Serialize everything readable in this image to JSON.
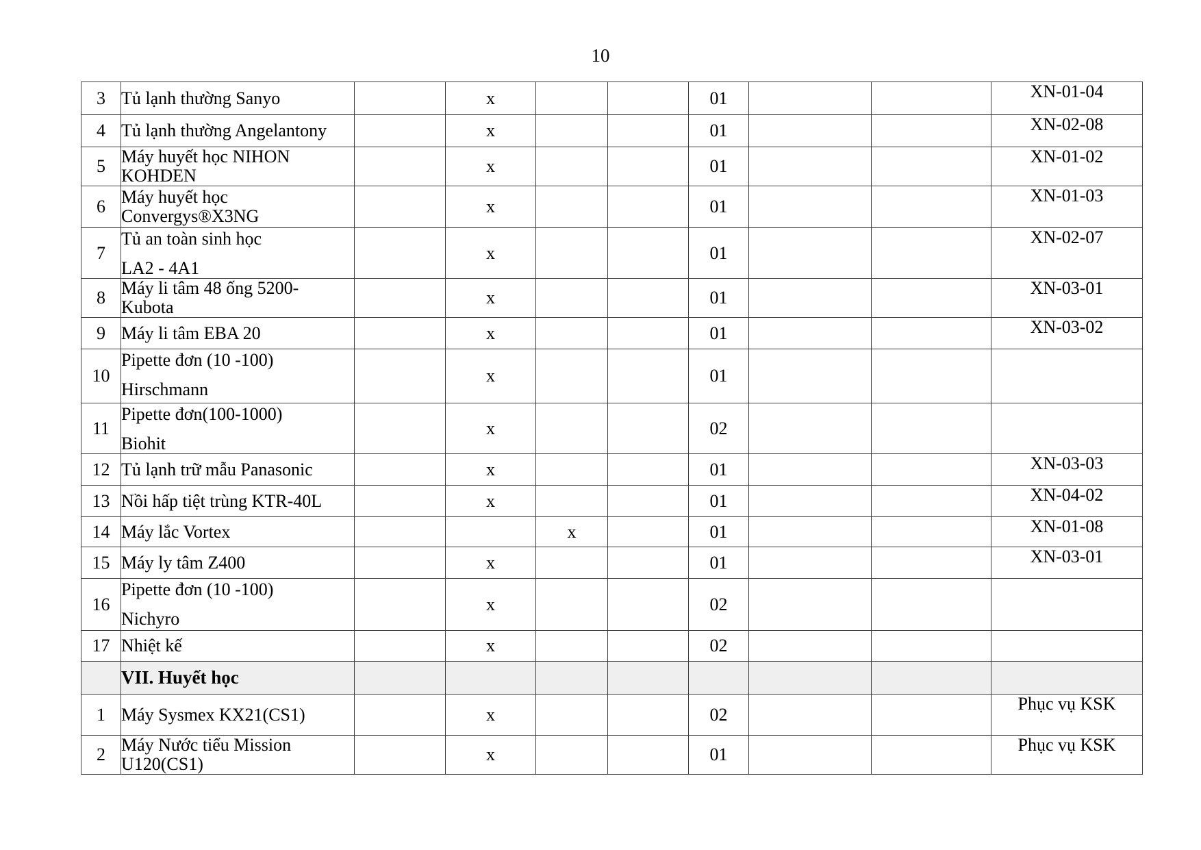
{
  "page": {
    "number": "10",
    "background": "#ffffff"
  },
  "colors": {
    "border": "#3d3d3d",
    "section_row_bg": "#efefef",
    "text": "#000000"
  },
  "table": {
    "mark_char": "x",
    "rows": [
      {
        "num": "3",
        "name": [
          "Tủ lạnh thường Sanyo"
        ],
        "gap": false,
        "mark": "main",
        "qty": "01",
        "code": "XN-01-04"
      },
      {
        "num": "4",
        "name": [
          "Tủ lạnh thường Angelantony"
        ],
        "gap": false,
        "mark": "main",
        "qty": "01",
        "code": "XN-02-08"
      },
      {
        "num": "5",
        "name": [
          "Máy huyết học NIHON",
          "KOHDEN"
        ],
        "gap": false,
        "mark": "main",
        "qty": "01",
        "code": "XN-01-02"
      },
      {
        "num": "6",
        "name": [
          "Máy huyết học",
          "Convergys®X3NG"
        ],
        "gap": false,
        "mark": "main",
        "qty": "01",
        "code": "XN-01-03"
      },
      {
        "num": "7",
        "name": [
          "Tủ an toàn sinh học",
          "LA2 - 4A1"
        ],
        "gap": true,
        "mark": "main",
        "qty": "01",
        "code": "XN-02-07"
      },
      {
        "num": "8",
        "name": [
          "Máy li tâm 48 ống 5200- Kubota"
        ],
        "gap": false,
        "mark": "main",
        "qty": "01",
        "code": "XN-03-01"
      },
      {
        "num": "9",
        "name": [
          "Máy li tâm EBA 20"
        ],
        "gap": false,
        "mark": "main",
        "qty": "01",
        "code": "XN-03-02"
      },
      {
        "num": "10",
        "name": [
          "Pipette đơn (10 -100)",
          "Hirschmann"
        ],
        "gap": true,
        "mark": "main",
        "qty": "01",
        "code": ""
      },
      {
        "num": "11",
        "name": [
          "Pipette đơn(100-1000)",
          "Biohit"
        ],
        "gap": true,
        "mark": "main",
        "qty": "02",
        "code": ""
      },
      {
        "num": "12",
        "name": [
          "Tủ lạnh trữ mẫu Panasonic"
        ],
        "gap": false,
        "mark": "main",
        "qty": "01",
        "code": "XN-03-03"
      },
      {
        "num": "13",
        "name": [
          "Nồi hấp tiệt trùng KTR-40L"
        ],
        "gap": false,
        "mark": "main",
        "qty": "01",
        "code": "XN-04-02"
      },
      {
        "num": "14",
        "name": [
          "Máy lắc Vortex"
        ],
        "gap": false,
        "mark": "alt",
        "qty": "01",
        "code": "XN-01-08"
      },
      {
        "num": "15",
        "name": [
          "Máy ly tâm Z400"
        ],
        "gap": false,
        "mark": "main",
        "qty": "01",
        "code": "XN-03-01"
      },
      {
        "num": "16",
        "name": [
          "Pipette đơn (10 -100)",
          "Nichyro"
        ],
        "gap": true,
        "mark": "main",
        "qty": "02",
        "code": ""
      },
      {
        "num": "17",
        "name": [
          "Nhiệt kế"
        ],
        "gap": false,
        "mark": "main",
        "qty": "02",
        "code": ""
      },
      {
        "section": true,
        "label": "VII. Huyết học"
      },
      {
        "num": "1",
        "name": [
          "Máy Sysmex KX21(CS1)"
        ],
        "gap": false,
        "mark": "main",
        "qty": "02",
        "code": "Phục vụ KSK"
      },
      {
        "num": "2",
        "name": [
          "Máy Nước tiểu Mission",
          "U120(CS1)"
        ],
        "gap": false,
        "mark": "main",
        "qty": "01",
        "code": "Phục vụ KSK"
      }
    ]
  }
}
